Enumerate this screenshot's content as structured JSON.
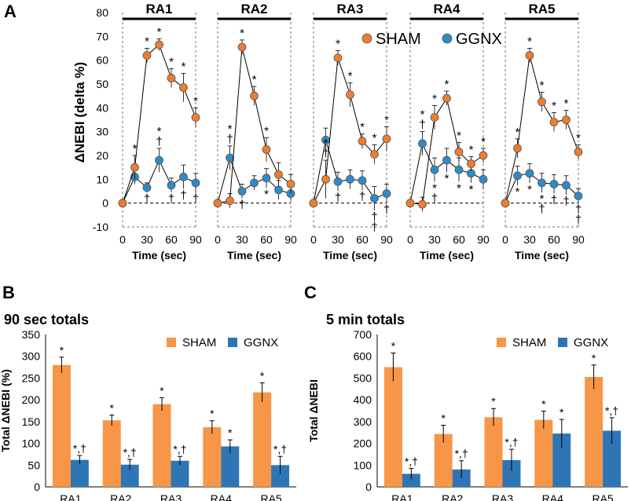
{
  "panel_letters": {
    "a": "A",
    "b": "B",
    "c": "C"
  },
  "colors": {
    "sham": "#ED7D31",
    "ggnx": "#2E8BC7",
    "sham_bar": "#F79646",
    "ggnx_bar": "#2E75B6"
  },
  "chart_data": [
    {
      "id": "A",
      "type": "line",
      "panel": "A",
      "ylabel": "ΔNEBI (delta %)",
      "xlabel": "Time (sec)",
      "ylim": [
        -10,
        80
      ],
      "yticks": [
        -10,
        0,
        10,
        20,
        30,
        40,
        50,
        60,
        70,
        80
      ],
      "x": [
        0,
        15,
        30,
        45,
        60,
        75,
        90
      ],
      "xtick_labels": [
        "0",
        "30",
        "60",
        "90"
      ],
      "legend": [
        "SHAM",
        "GGNX"
      ],
      "groups": [
        {
          "label": "RA1",
          "sham": [
            0,
            15,
            62,
            66.5,
            52.5,
            48.5,
            36
          ],
          "sham_err": [
            0,
            5,
            3,
            2.5,
            4,
            6,
            4
          ],
          "ggnx": [
            0,
            11,
            6.5,
            18,
            7.5,
            11,
            8.5
          ],
          "ggnx_err": [
            0,
            3,
            2,
            5,
            3,
            5,
            4
          ],
          "sham_sig": [
            "",
            "*",
            "*",
            "*",
            "*",
            "*",
            "*"
          ],
          "ggnx_sig_above": [
            "",
            "",
            "",
            "*\n†",
            "",
            "",
            ""
          ],
          "ggnx_sig_below": [
            "",
            "",
            "†",
            "",
            "†",
            "†",
            "†"
          ]
        },
        {
          "label": "RA2",
          "sham": [
            0,
            1,
            65.5,
            45,
            22.5,
            12,
            8
          ],
          "sham_err": [
            0,
            3,
            3,
            4,
            5,
            5,
            4
          ],
          "ggnx": [
            0,
            19,
            5,
            8.5,
            10.5,
            5.5,
            4
          ],
          "ggnx_err": [
            0,
            5,
            3,
            3,
            4,
            4,
            3
          ],
          "sham_sig": [
            "",
            "",
            "*",
            "*",
            "*",
            "",
            ""
          ],
          "ggnx_sig_above": [
            "",
            "*\n†",
            "",
            "",
            "",
            "",
            ""
          ],
          "ggnx_sig_below": [
            "",
            "",
            "†",
            "",
            "*",
            "",
            ""
          ]
        },
        {
          "label": "RA3",
          "sham": [
            0,
            10,
            61,
            45.5,
            26,
            20.5,
            27
          ],
          "sham_err": [
            0,
            8,
            3,
            5,
            3,
            4,
            5
          ],
          "ggnx": [
            0,
            26.5,
            9,
            10,
            9.5,
            2,
            4
          ],
          "ggnx_err": [
            0,
            5,
            4,
            4,
            4,
            5,
            4
          ],
          "sham_sig": [
            "",
            "*\n†",
            "*",
            "*",
            "*",
            "*",
            "*"
          ],
          "ggnx_sig_above": [
            "",
            "",
            "",
            "",
            "",
            "",
            ""
          ],
          "ggnx_sig_below": [
            "",
            "",
            "†",
            "",
            "†",
            "†\n†",
            "†"
          ]
        },
        {
          "label": "RA4",
          "sham": [
            0,
            -0.5,
            36,
            44,
            21.5,
            16.5,
            20
          ],
          "sham_err": [
            0,
            3,
            5,
            3,
            4,
            3,
            3
          ],
          "ggnx": [
            0,
            25,
            14,
            18,
            14,
            12.5,
            10
          ],
          "ggnx_err": [
            0,
            5,
            5,
            5,
            5,
            4,
            4
          ],
          "sham_sig": [
            "",
            "",
            "*",
            "*",
            "*",
            "*",
            "*"
          ],
          "ggnx_sig_above": [
            "",
            "*\n†",
            "",
            "",
            "",
            "",
            ""
          ],
          "ggnx_sig_below": [
            "",
            "",
            "*\n†",
            "*",
            "*",
            "*",
            ""
          ]
        },
        {
          "label": "RA5",
          "sham": [
            0,
            23,
            62,
            42.5,
            34,
            35,
            21.5
          ],
          "sham_err": [
            0,
            4,
            3,
            4,
            4,
            4,
            3
          ],
          "ggnx": [
            0,
            11.5,
            12.5,
            8.5,
            8,
            7.5,
            3
          ],
          "ggnx_err": [
            0,
            4,
            4,
            4,
            4,
            4,
            3
          ],
          "sham_sig": [
            "",
            "*",
            "*",
            "*",
            "*",
            "*",
            "*"
          ],
          "ggnx_sig_above": [
            "",
            "",
            "",
            "",
            "",
            "",
            ""
          ],
          "ggnx_sig_below": [
            "",
            "*",
            "*",
            "*\n†",
            "†",
            "†",
            "†\n†"
          ]
        }
      ]
    },
    {
      "id": "B",
      "type": "bar",
      "panel": "B",
      "title": "90 sec totals",
      "ylabel": "Total ΔNEBI (%)",
      "ylim": [
        0,
        350
      ],
      "yticks": [
        0,
        50,
        100,
        150,
        200,
        250,
        300,
        350
      ],
      "categories": [
        "RA1",
        "RA2",
        "RA3",
        "RA4",
        "RA5"
      ],
      "series": [
        {
          "name": "SHAM",
          "values": [
            280,
            153,
            190,
            137,
            217
          ],
          "errors": [
            18,
            12,
            15,
            15,
            22
          ],
          "sig": [
            "*",
            "*",
            "*",
            "*",
            "*"
          ]
        },
        {
          "name": "GGNX",
          "values": [
            62,
            51,
            60,
            93,
            50
          ],
          "errors": [
            10,
            12,
            10,
            15,
            20
          ],
          "sig": [
            "*,†",
            "*,†",
            "*,†",
            "*",
            "*,†"
          ]
        }
      ]
    },
    {
      "id": "C",
      "type": "bar",
      "panel": "C",
      "title": "5 min totals",
      "ylabel": "Total ΔNEBI",
      "ylim": [
        0,
        700
      ],
      "yticks": [
        0,
        100,
        200,
        300,
        400,
        500,
        600,
        700
      ],
      "categories": [
        "RA1",
        "RA2",
        "RA3",
        "RA4",
        "RA5"
      ],
      "series": [
        {
          "name": "SHAM",
          "values": [
            550,
            243,
            320,
            308,
            505
          ],
          "errors": [
            65,
            40,
            40,
            40,
            55
          ],
          "sig": [
            "*",
            "*",
            "*",
            "*",
            "*"
          ]
        },
        {
          "name": "GGNX",
          "values": [
            60,
            80,
            123,
            245,
            258
          ],
          "errors": [
            25,
            40,
            50,
            65,
            60
          ],
          "sig": [
            "*,†",
            "*,†",
            "*,†",
            "*",
            "*,†"
          ]
        }
      ]
    }
  ]
}
